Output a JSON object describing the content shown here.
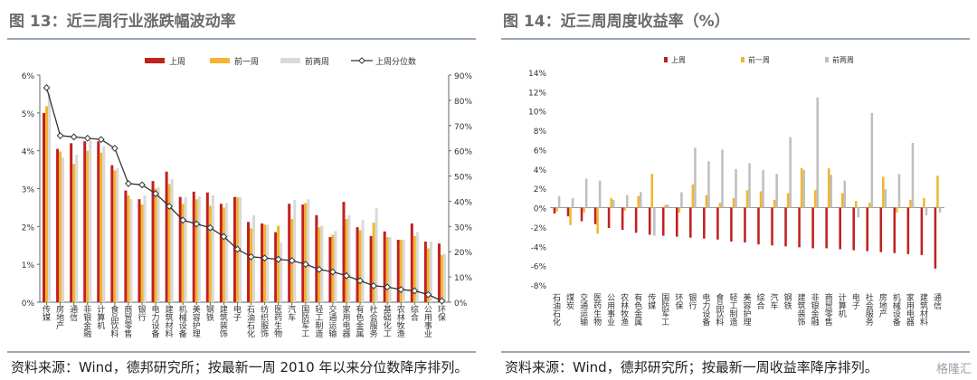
{
  "left": {
    "title": "图 13：近三周行业涨跌幅波动率",
    "source": "资料来源：Wind，德邦研究所；按最新一周 2010 年以来分位数降序排列。"
  },
  "right": {
    "title": "图 14：近三周周度收益率（%）",
    "source": "资料来源：Wind，德邦研究所；按最新一周收益率降序排列。"
  },
  "watermark": "格隆汇",
  "chart_data": [
    {
      "type": "bar",
      "title": "近三周行业涨跌幅波动率",
      "legend_position": "top",
      "ylim": [
        0,
        6
      ],
      "y_ticks": [
        "0%",
        "1%",
        "2%",
        "3%",
        "4%",
        "5%",
        "6%"
      ],
      "y2lim": [
        0,
        90
      ],
      "y2_ticks": [
        "0%",
        "10%",
        "20%",
        "30%",
        "40%",
        "50%",
        "60%",
        "70%",
        "80%",
        "90%"
      ],
      "categories": [
        "传媒",
        "房地产",
        "通信",
        "非银金融",
        "计算机",
        "食品饮料",
        "商贸零售",
        "银行",
        "电力设备",
        "建筑材料",
        "机械设备",
        "美容护理",
        "钢铁",
        "建筑装饰",
        "电子",
        "石油石化",
        "纺织服饰",
        "医药生物",
        "汽车",
        "国防军工",
        "轻工制造",
        "交通运输",
        "家用电器",
        "有色金属",
        "社会服务",
        "基础化工",
        "农林牧渔",
        "综合",
        "公用事业",
        "环保"
      ],
      "series": [
        {
          "name": "上周",
          "kind": "bar",
          "color": "#c0211f",
          "values": [
            5.0,
            4.05,
            4.2,
            4.25,
            4.25,
            3.62,
            2.95,
            2.72,
            3.2,
            3.45,
            2.78,
            2.92,
            2.9,
            2.6,
            2.78,
            2.12,
            2.08,
            1.85,
            2.6,
            2.58,
            2.3,
            1.72,
            2.65,
            1.98,
            1.75,
            1.87,
            1.65,
            2.08,
            1.6,
            1.55
          ]
        },
        {
          "name": "前一周",
          "kind": "bar",
          "color": "#f2b530",
          "values": [
            5.18,
            3.98,
            3.65,
            4.0,
            3.95,
            3.48,
            2.82,
            2.58,
            3.0,
            3.12,
            2.6,
            2.72,
            2.55,
            2.5,
            2.77,
            1.95,
            2.05,
            2.02,
            2.2,
            2.62,
            1.98,
            1.78,
            2.2,
            1.9,
            2.1,
            1.72,
            1.65,
            1.75,
            1.42,
            1.25
          ]
        },
        {
          "name": "前两周",
          "kind": "bar",
          "color": "#d9d9d9",
          "values": [
            5.52,
            3.82,
            3.9,
            4.28,
            4.12,
            3.55,
            2.72,
            2.82,
            3.05,
            3.25,
            2.78,
            2.8,
            2.82,
            2.62,
            2.78,
            2.3,
            2.05,
            1.58,
            2.7,
            2.72,
            2.02,
            1.88,
            2.3,
            2.18,
            2.48,
            1.72,
            1.65,
            1.85,
            1.6,
            1.28
          ]
        },
        {
          "name": "上周分位数",
          "kind": "line",
          "axis": "right",
          "color": "#333333",
          "values": [
            85,
            66,
            65.5,
            65,
            64.5,
            61,
            47,
            46.5,
            43,
            38,
            32.5,
            31,
            29.5,
            26,
            21,
            18,
            17.5,
            17,
            16.5,
            15,
            13,
            12,
            10.5,
            8.5,
            6.5,
            6,
            5,
            4.5,
            3,
            0.5
          ]
        }
      ]
    },
    {
      "type": "bar",
      "title": "近三周周度收益率（%）",
      "legend_position": "top",
      "ylim": [
        -8,
        14
      ],
      "y_ticks": [
        "-8%",
        "-6%",
        "-4%",
        "-2%",
        "0%",
        "2%",
        "4%",
        "6%",
        "8%",
        "10%",
        "12%",
        "14%"
      ],
      "categories": [
        "石油石化",
        "煤炭",
        "交通运输",
        "医药生物",
        "公用事业",
        "农林牧渔",
        "有色金属",
        "传媒",
        "国防军工",
        "环保",
        "银行",
        "电力设备",
        "食品饮料",
        "轻工制造",
        "美容护理",
        "综合",
        "汽车",
        "钢铁",
        "建筑装饰",
        "非银金融",
        "商贸零售",
        "计算机",
        "电子",
        "社会服务",
        "房地产",
        "机械设备",
        "家用电器",
        "建筑材料",
        "通信"
      ],
      "series": [
        {
          "name": "上周",
          "kind": "bar",
          "color": "#c0211f",
          "values": [
            -0.6,
            -0.9,
            -1.4,
            -1.7,
            -2.1,
            -2.3,
            -2.6,
            -2.8,
            -2.9,
            -3.0,
            -3.1,
            -3.2,
            -3.3,
            -3.5,
            -3.6,
            -3.8,
            -3.9,
            -4.0,
            -4.1,
            -4.2,
            -4.2,
            -4.3,
            -4.4,
            -4.5,
            -4.6,
            -4.7,
            -4.8,
            -4.9,
            -6.3
          ]
        },
        {
          "name": "前一周",
          "kind": "bar",
          "color": "#f2b530",
          "values": [
            -0.4,
            -1.8,
            -0.5,
            -2.7,
            1.0,
            -0.3,
            1.2,
            3.5,
            0.3,
            -0.5,
            2.4,
            1.3,
            0.5,
            1.0,
            1.8,
            1.7,
            0.8,
            1.5,
            4.1,
            1.8,
            4.1,
            1.5,
            0.7,
            0.5,
            3.2,
            -0.5,
            0.8,
            1.0,
            3.3
          ]
        },
        {
          "name": "前两周",
          "kind": "bar",
          "color": "#bfbfbf",
          "values": [
            1.2,
            1.0,
            3.0,
            2.8,
            0.8,
            1.3,
            1.6,
            -2.9,
            0.3,
            1.6,
            6.2,
            4.8,
            6.0,
            4.0,
            4.6,
            3.9,
            3.5,
            7.3,
            3.9,
            11.4,
            3.4,
            2.8,
            -1.0,
            9.8,
            1.9,
            3.5,
            6.7,
            -0.8,
            -0.5
          ]
        }
      ]
    }
  ]
}
